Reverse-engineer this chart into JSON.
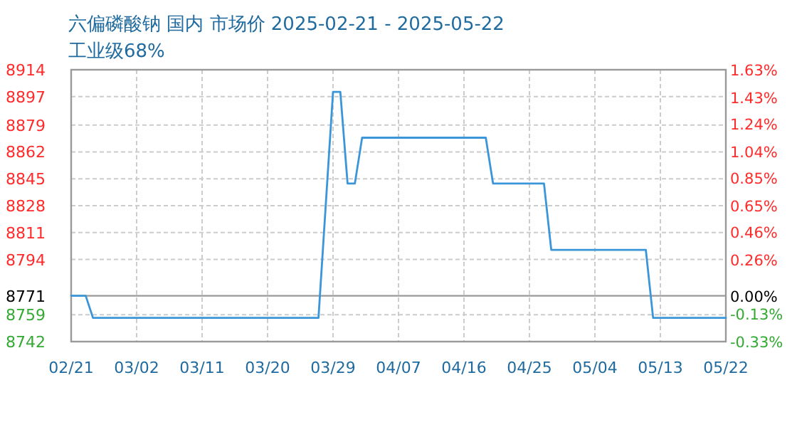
{
  "chart_data": {
    "type": "line",
    "title": "六偏磷酸钠 国内 市场价 2025-02-21 - 2025-05-22",
    "subtitle": "工业级68%",
    "x": [
      "2025-02-21",
      "2025-02-23",
      "2025-02-24",
      "2025-03-27",
      "2025-03-29",
      "2025-03-30",
      "2025-03-31",
      "2025-04-01",
      "2025-04-02",
      "2025-04-19",
      "2025-04-20",
      "2025-04-27",
      "2025-04-28",
      "2025-05-11",
      "2025-05-12",
      "2025-05-22"
    ],
    "series": [
      {
        "color": "#3a96d8",
        "values": [
          8771,
          8771,
          8757,
          8757,
          8900,
          8900,
          8842,
          8842,
          8871,
          8871,
          8842,
          8842,
          8800,
          8800,
          8757,
          8757
        ]
      }
    ],
    "xlim": [
      "2025-02-21",
      "2025-05-22"
    ],
    "xticks": [
      {
        "value": "2025-02-21",
        "label": "02/21"
      },
      {
        "value": "2025-03-02",
        "label": "03/02"
      },
      {
        "value": "2025-03-11",
        "label": "03/11"
      },
      {
        "value": "2025-03-20",
        "label": "03/20"
      },
      {
        "value": "2025-03-29",
        "label": "03/29"
      },
      {
        "value": "2025-04-07",
        "label": "04/07"
      },
      {
        "value": "2025-04-16",
        "label": "04/16"
      },
      {
        "value": "2025-04-25",
        "label": "04/25"
      },
      {
        "value": "2025-05-04",
        "label": "05/04"
      },
      {
        "value": "2025-05-13",
        "label": "05/13"
      },
      {
        "value": "2025-05-22",
        "label": "05/22"
      }
    ],
    "ylim": [
      8742,
      8914
    ],
    "yticks": [
      8742,
      8759,
      8771,
      8794,
      8811,
      8828,
      8845,
      8862,
      8879,
      8897,
      8914
    ],
    "y2lim": [
      -0.33,
      1.63
    ],
    "y2ticks": [
      {
        "value": -0.33,
        "label": "-0.33%"
      },
      {
        "value": -0.13,
        "label": "-0.13%"
      },
      {
        "value": 0,
        "label": "0.00%"
      },
      {
        "value": 0.26,
        "label": "0.26%"
      },
      {
        "value": 0.46,
        "label": "0.46%"
      },
      {
        "value": 0.65,
        "label": "0.65%"
      },
      {
        "value": 0.85,
        "label": "0.85%"
      },
      {
        "value": 1.04,
        "label": "1.04%"
      },
      {
        "value": 1.24,
        "label": "1.24%"
      },
      {
        "value": 1.43,
        "label": "1.43%"
      },
      {
        "value": 1.63,
        "label": "1.63%"
      }
    ],
    "ref_lines": [
      {
        "axis": "y",
        "value": 8771,
        "color": "#999999",
        "line_style": "solid"
      }
    ],
    "grid": true,
    "marker": "none",
    "line_style": "solid"
  }
}
